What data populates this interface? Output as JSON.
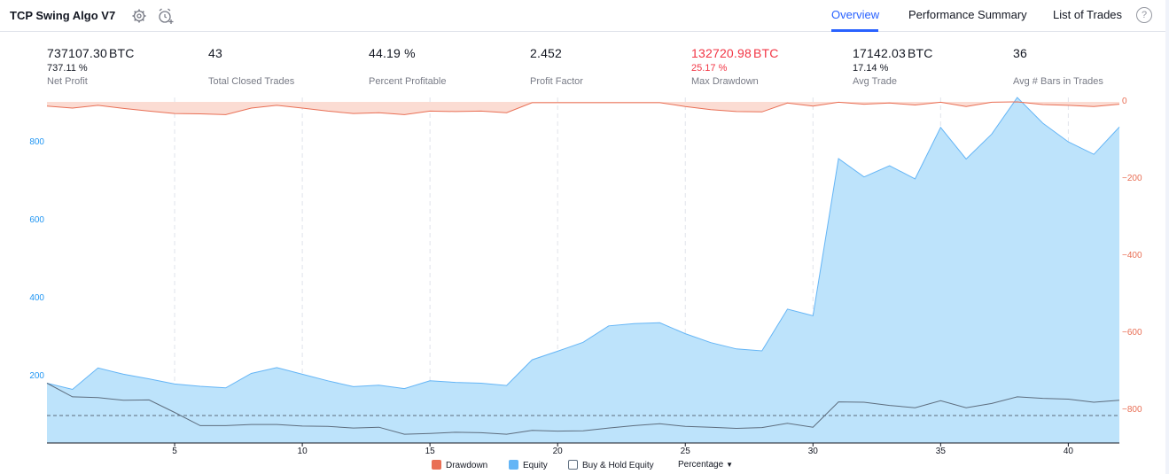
{
  "header": {
    "title": "TCP Swing Algo V7",
    "tabs": [
      "Overview",
      "Performance Summary",
      "List of Trades"
    ],
    "active_tab": "Overview",
    "help": "?"
  },
  "metrics": [
    {
      "value": "737107.30",
      "unit": "BTC",
      "sub": "737.11 %",
      "label": "Net Profit"
    },
    {
      "value": "43",
      "unit": "",
      "sub": "",
      "label": "Total Closed Trades"
    },
    {
      "value": "44.19 %",
      "unit": "",
      "sub": "",
      "label": "Percent Profitable"
    },
    {
      "value": "2.452",
      "unit": "",
      "sub": "",
      "label": "Profit Factor"
    },
    {
      "value": "132720.98",
      "unit": "BTC",
      "sub": "25.17 %",
      "label": "Max Drawdown"
    },
    {
      "value": "17142.03",
      "unit": "BTC",
      "sub": "17.14 %",
      "label": "Avg Trade"
    },
    {
      "value": "36",
      "unit": "",
      "sub": "",
      "label": "Avg # Bars in Trades"
    }
  ],
  "legend": {
    "drawdown": "Drawdown",
    "equity": "Equity",
    "buyhold": "Buy & Hold Equity",
    "mode": "Percentage"
  },
  "colors": {
    "accent": "#2962ff",
    "equity_fill": "#bde3fb",
    "equity_line": "#64b5f6",
    "drawdown_fill": "#fbdcd3",
    "drawdown_line": "#e96f55",
    "buyhold_line": "#5d6d7e",
    "negative": "#f23645"
  },
  "chart_data": {
    "type": "area",
    "x_ticks": [
      5,
      10,
      15,
      20,
      25,
      30,
      35,
      40
    ],
    "x_range": [
      0,
      42
    ],
    "y_left_ticks": [
      200,
      400,
      600,
      800
    ],
    "y_right_ticks": [
      0,
      -200,
      -400,
      -600,
      -800
    ],
    "series": [
      {
        "name": "Equity",
        "x": [
          0,
          1,
          2,
          3,
          4,
          5,
          6,
          7,
          8,
          9,
          10,
          11,
          12,
          13,
          14,
          15,
          16,
          17,
          18,
          19,
          20,
          21,
          22,
          23,
          24,
          25,
          26,
          27,
          28,
          29,
          30,
          31,
          32,
          33,
          34,
          35,
          36,
          37,
          38,
          39,
          40,
          41,
          42
        ],
        "values": [
          183,
          167,
          222,
          206,
          194,
          181,
          175,
          171,
          208,
          223,
          206,
          189,
          174,
          178,
          169,
          189,
          185,
          183,
          177,
          243,
          265,
          288,
          330,
          336,
          338,
          310,
          287,
          271,
          266,
          373,
          356,
          759,
          712,
          741,
          707,
          839,
          758,
          822,
          916,
          850,
          802,
          770,
          840
        ]
      },
      {
        "name": "Drawdown",
        "x": [
          0,
          1,
          2,
          3,
          4,
          5,
          6,
          7,
          8,
          9,
          10,
          11,
          12,
          13,
          14,
          15,
          16,
          17,
          18,
          19,
          20,
          21,
          22,
          23,
          24,
          25,
          26,
          27,
          28,
          29,
          30,
          31,
          32,
          33,
          34,
          35,
          36,
          37,
          38,
          39,
          40,
          41,
          42
        ],
        "values": [
          -11,
          -16,
          -9,
          -17,
          -24,
          -30,
          -31,
          -33,
          -16,
          -9,
          -16,
          -24,
          -30,
          -28,
          -33,
          -24,
          -25,
          -24,
          -28,
          -2,
          -2,
          -2,
          -2,
          -2,
          -2,
          -12,
          -20,
          -25,
          -26,
          -3,
          -11,
          -1,
          -6,
          -3,
          -8,
          -1,
          -12,
          -1,
          0,
          -7,
          -9,
          -12,
          -6
        ]
      },
      {
        "name": "Buy & Hold Equity",
        "x": [
          0,
          1,
          2,
          3,
          4,
          5,
          6,
          7,
          8,
          9,
          10,
          11,
          12,
          13,
          14,
          15,
          16,
          17,
          18,
          19,
          20,
          21,
          22,
          23,
          24,
          25,
          26,
          27,
          28,
          29,
          30,
          31,
          32,
          33,
          34,
          35,
          36,
          37,
          38,
          39,
          40,
          41,
          42
        ],
        "values": [
          183,
          148,
          146,
          139,
          140,
          108,
          74,
          74,
          77,
          77,
          73,
          72,
          68,
          70,
          52,
          54,
          57,
          56,
          52,
          62,
          60,
          61,
          68,
          74,
          79,
          72,
          70,
          67,
          69,
          80,
          70,
          135,
          134,
          126,
          120,
          138,
          120,
          131,
          148,
          144,
          142,
          134,
          139
        ]
      }
    ],
    "reference_line": 100
  }
}
